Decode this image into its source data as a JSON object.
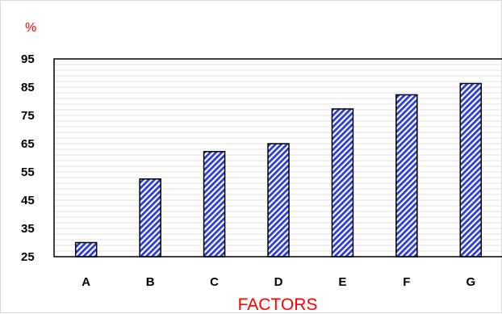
{
  "chart_data": {
    "type": "bar",
    "categories": [
      "A",
      "B",
      "C",
      "D",
      "E",
      "F",
      "G"
    ],
    "values": [
      30,
      52.5,
      62.2,
      65,
      77.3,
      82.3,
      86.3
    ],
    "ylabel": "%",
    "xlabel": "FACTORS",
    "title": "",
    "ylim": [
      25,
      95
    ],
    "y_ticks": [
      25,
      35,
      45,
      55,
      65,
      75,
      85,
      95
    ],
    "minor_gridline_step": 2,
    "grid": true,
    "legend": "none",
    "colors": {
      "bar_fill": "#2a3cdc",
      "bar_fill_light": "#ffffff",
      "bar_outline": "#000000",
      "label_accent": "#ff0000",
      "gridline": "#e0e0e0"
    }
  }
}
